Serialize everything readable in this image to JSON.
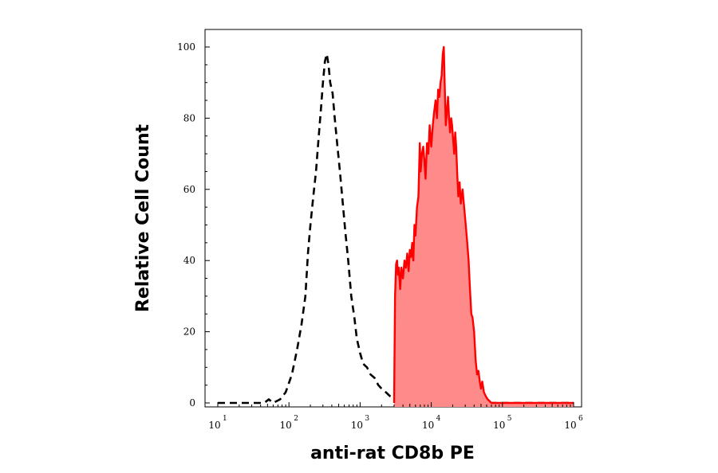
{
  "chart_data": {
    "type": "area",
    "title": "",
    "xlabel": "anti-rat CD8b PE",
    "ylabel": "Relative Cell Count",
    "x_scale": "log",
    "xlim": [
      10,
      1000000
    ],
    "ylim": [
      0,
      100
    ],
    "x_ticks": [
      {
        "base": "10",
        "exp": "1",
        "value": 10
      },
      {
        "base": "10",
        "exp": "2",
        "value": 100
      },
      {
        "base": "10",
        "exp": "3",
        "value": 1000
      },
      {
        "base": "10",
        "exp": "4",
        "value": 10000
      },
      {
        "base": "10",
        "exp": "5",
        "value": 100000
      },
      {
        "base": "10",
        "exp": "6",
        "value": 1000000
      }
    ],
    "y_ticks": [
      "0",
      "20",
      "40",
      "60",
      "80",
      "100"
    ],
    "grid": false,
    "legend": "none",
    "series": [
      {
        "style": "dashed",
        "color": "#000000",
        "fill": "none",
        "points": [
          [
            10,
            0
          ],
          [
            30,
            0
          ],
          [
            45,
            0
          ],
          [
            52,
            1
          ],
          [
            60,
            0
          ],
          [
            75,
            1
          ],
          [
            90,
            3
          ],
          [
            110,
            8
          ],
          [
            130,
            15
          ],
          [
            150,
            22
          ],
          [
            170,
            30
          ],
          [
            185,
            42
          ],
          [
            200,
            50
          ],
          [
            220,
            58
          ],
          [
            240,
            65
          ],
          [
            260,
            74
          ],
          [
            280,
            82
          ],
          [
            300,
            90
          ],
          [
            320,
            96
          ],
          [
            340,
            98
          ],
          [
            360,
            95
          ],
          [
            380,
            90
          ],
          [
            410,
            87
          ],
          [
            440,
            80
          ],
          [
            480,
            72
          ],
          [
            520,
            65
          ],
          [
            560,
            58
          ],
          [
            620,
            48
          ],
          [
            680,
            40
          ],
          [
            750,
            30
          ],
          [
            830,
            24
          ],
          [
            900,
            18
          ],
          [
            1000,
            14
          ],
          [
            1100,
            11
          ],
          [
            1250,
            10
          ],
          [
            1400,
            8
          ],
          [
            1600,
            7
          ],
          [
            1800,
            5
          ],
          [
            2000,
            4
          ],
          [
            2300,
            3
          ],
          [
            2600,
            2
          ],
          [
            3000,
            1
          ],
          [
            3500,
            0.5
          ],
          [
            5000,
            0
          ],
          [
            1000000,
            0
          ]
        ]
      },
      {
        "style": "solid",
        "color": "#ff0000",
        "fill": "#ff8a8a",
        "points": [
          [
            3000,
            0
          ],
          [
            3100,
            30
          ],
          [
            3200,
            39
          ],
          [
            3300,
            40
          ],
          [
            3400,
            36
          ],
          [
            3500,
            38
          ],
          [
            3650,
            32
          ],
          [
            3800,
            38
          ],
          [
            4000,
            35
          ],
          [
            4200,
            40
          ],
          [
            4400,
            38
          ],
          [
            4600,
            42
          ],
          [
            4800,
            37
          ],
          [
            5000,
            43
          ],
          [
            5200,
            41
          ],
          [
            5400,
            45
          ],
          [
            5600,
            40
          ],
          [
            5800,
            50
          ],
          [
            6000,
            47
          ],
          [
            6300,
            55
          ],
          [
            6600,
            58
          ],
          [
            6900,
            73
          ],
          [
            7100,
            65
          ],
          [
            7400,
            70
          ],
          [
            7700,
            72
          ],
          [
            8000,
            68
          ],
          [
            8300,
            63
          ],
          [
            8700,
            73
          ],
          [
            9100,
            70
          ],
          [
            9500,
            78
          ],
          [
            10000,
            72
          ],
          [
            10500,
            78
          ],
          [
            11000,
            82
          ],
          [
            11500,
            85
          ],
          [
            12000,
            80
          ],
          [
            12500,
            88
          ],
          [
            13000,
            86
          ],
          [
            13500,
            90
          ],
          [
            14000,
            92
          ],
          [
            14500,
            98
          ],
          [
            15000,
            100
          ],
          [
            15500,
            88
          ],
          [
            16000,
            78
          ],
          [
            16600,
            82
          ],
          [
            17200,
            86
          ],
          [
            17800,
            80
          ],
          [
            18400,
            76
          ],
          [
            19000,
            80
          ],
          [
            19600,
            78
          ],
          [
            20300,
            74
          ],
          [
            21000,
            70
          ],
          [
            21700,
            76
          ],
          [
            22400,
            72
          ],
          [
            23200,
            64
          ],
          [
            24000,
            58
          ],
          [
            25000,
            62
          ],
          [
            26000,
            56
          ],
          [
            27500,
            60
          ],
          [
            29000,
            55
          ],
          [
            30500,
            50
          ],
          [
            32000,
            45
          ],
          [
            33500,
            40
          ],
          [
            35000,
            32
          ],
          [
            36500,
            25
          ],
          [
            38000,
            24
          ],
          [
            40000,
            20
          ],
          [
            42000,
            12
          ],
          [
            44000,
            8
          ],
          [
            46000,
            9
          ],
          [
            48000,
            6
          ],
          [
            50000,
            4
          ],
          [
            52000,
            6
          ],
          [
            55000,
            3
          ],
          [
            58000,
            2
          ],
          [
            62000,
            1
          ],
          [
            66000,
            0.5
          ],
          [
            70000,
            0
          ],
          [
            1000000,
            0
          ]
        ]
      }
    ]
  }
}
